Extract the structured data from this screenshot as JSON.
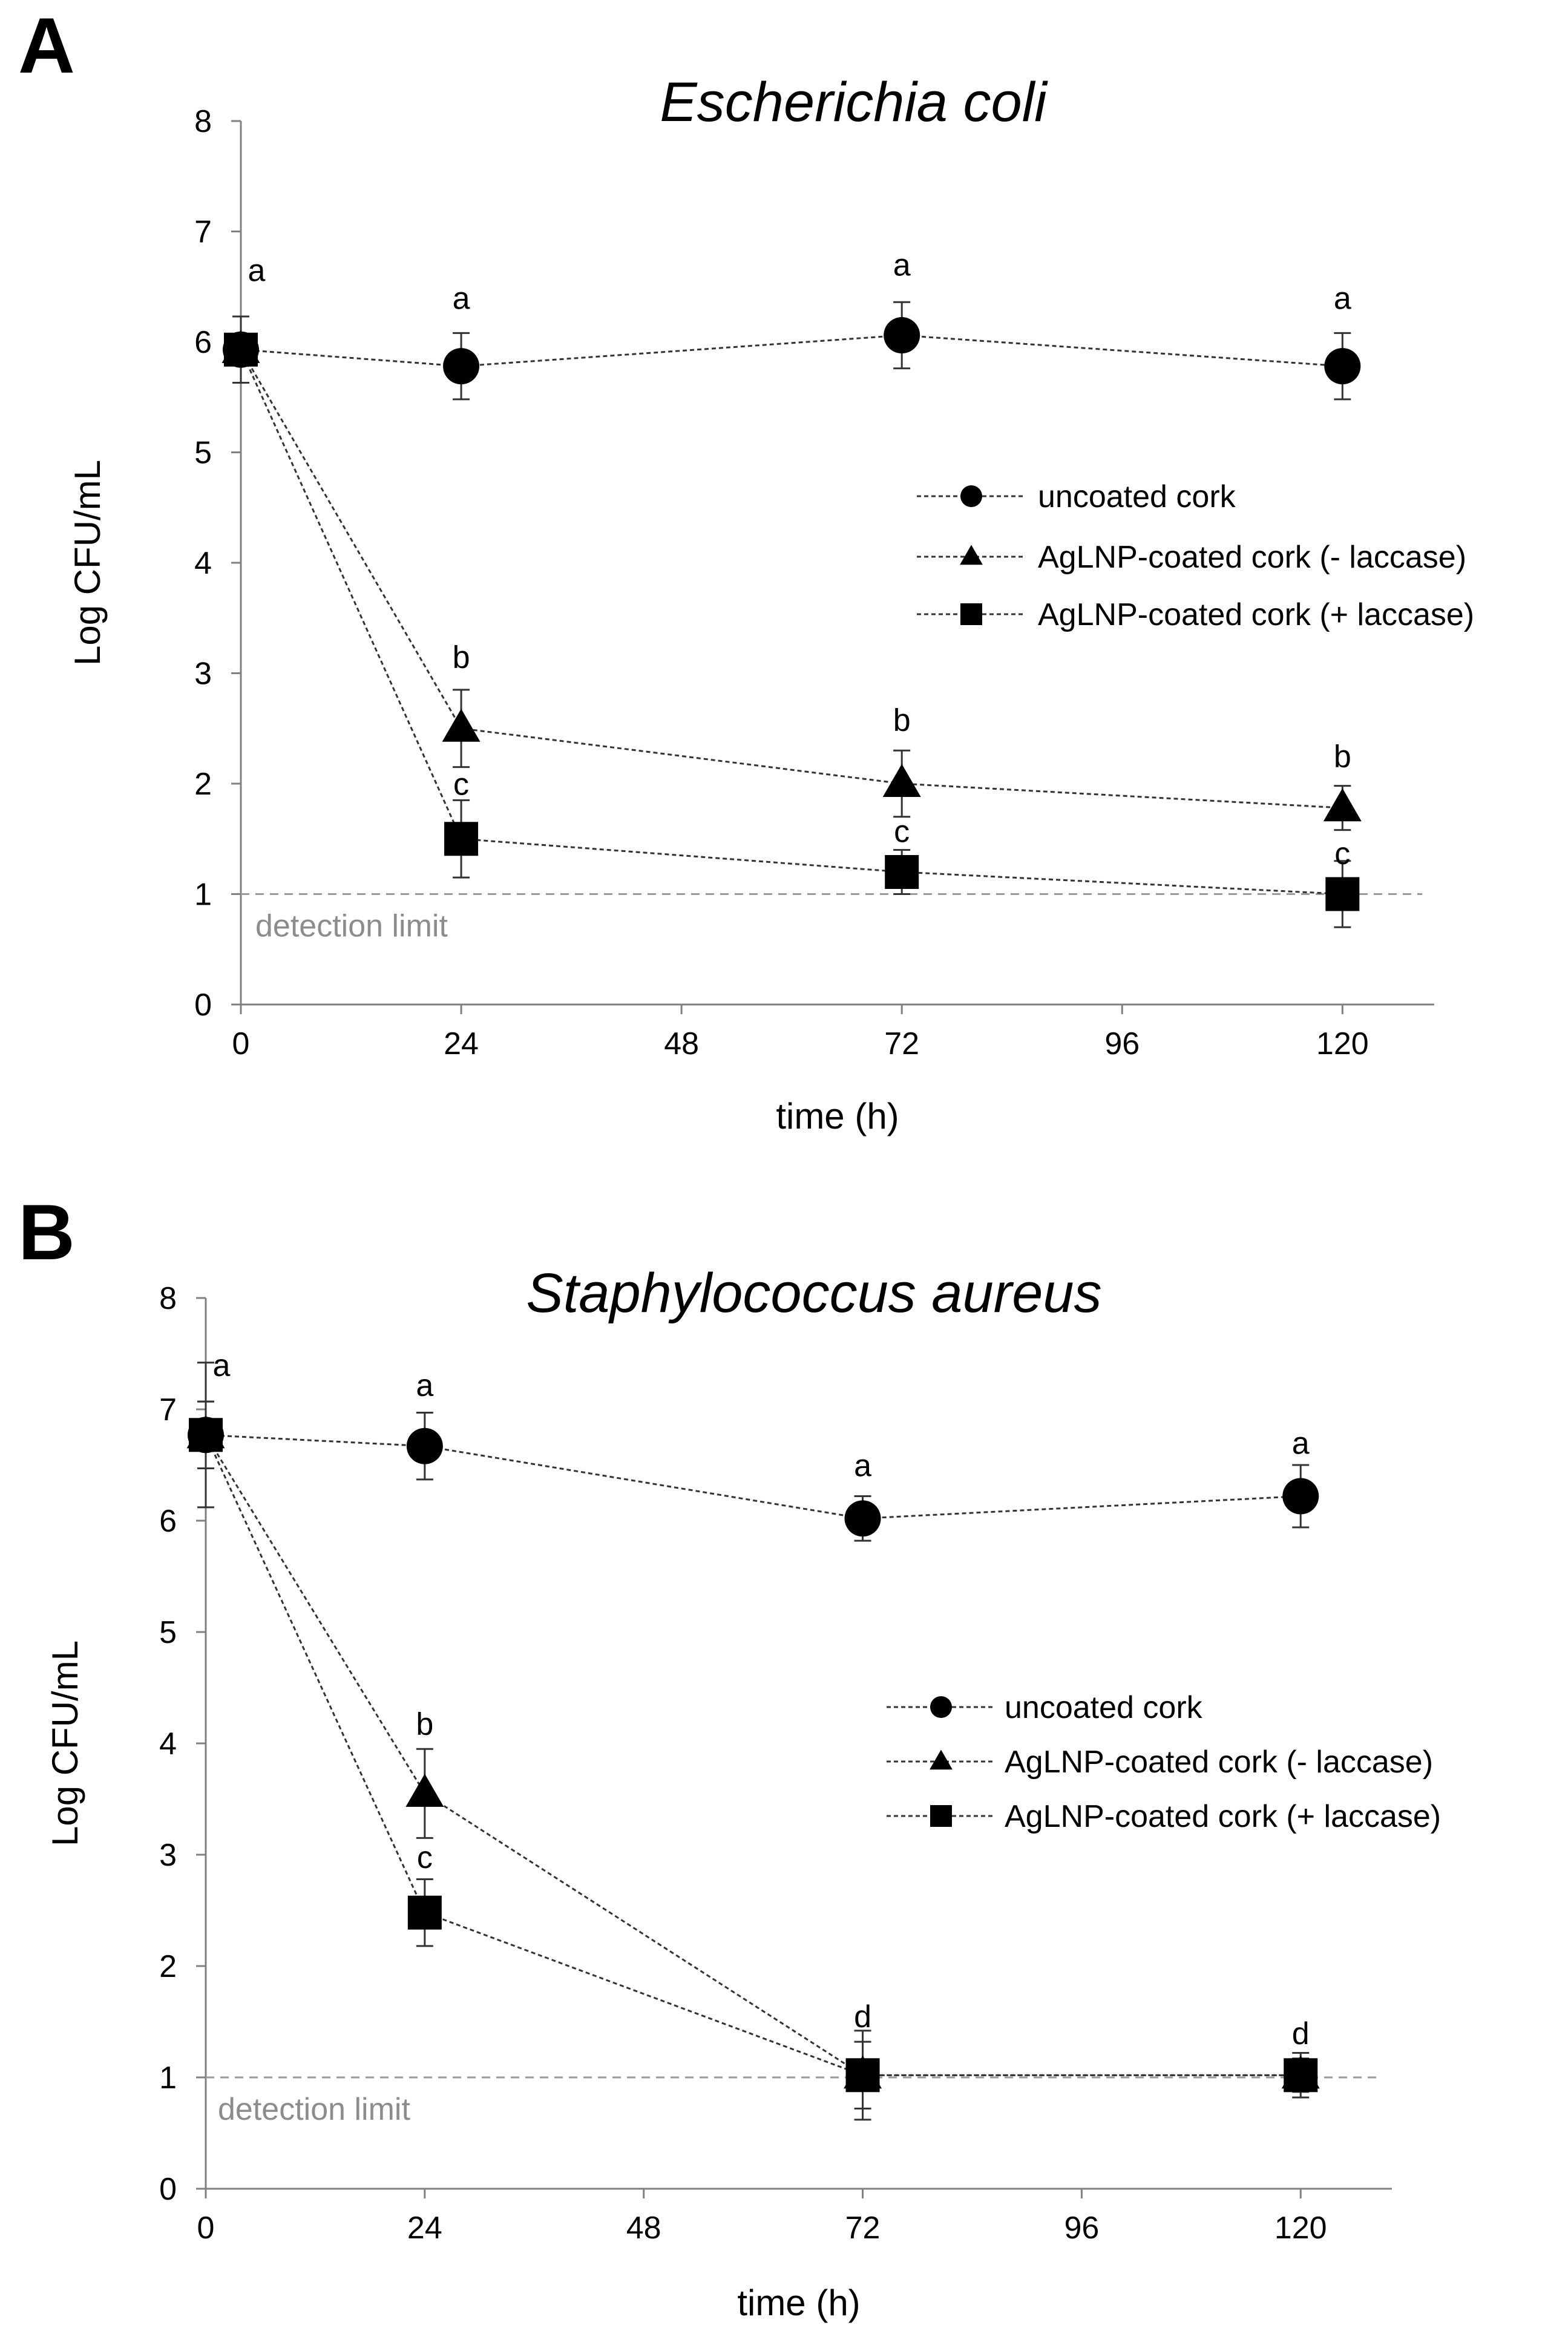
{
  "chart_data": [
    {
      "type": "line",
      "panel_label": "A",
      "title": "Escherichia coli",
      "xlabel": "time (h)",
      "ylabel": "Log CFU/mL",
      "xlim": [
        0,
        130
      ],
      "ylim": [
        0,
        8
      ],
      "x_ticks": [
        0,
        24,
        48,
        72,
        96,
        120
      ],
      "y_ticks": [
        0,
        1,
        2,
        3,
        4,
        5,
        6,
        7,
        8
      ],
      "x_tick_labels": [
        "0",
        "24",
        "48",
        "72",
        "96",
        "120"
      ],
      "y_tick_labels": [
        "0",
        "1",
        "2",
        "3",
        "4",
        "5",
        "6",
        "7",
        "8"
      ],
      "grid": false,
      "legend_position": "center-right",
      "detection_limit": {
        "value": 1.0,
        "label": "detection limit"
      },
      "series": [
        {
          "name": "uncoated cork",
          "marker": "circle",
          "x": [
            0,
            24,
            72,
            120
          ],
          "y": [
            5.93,
            5.78,
            6.06,
            5.78
          ],
          "err": [
            0.3,
            0.3,
            0.3,
            0.3
          ]
        },
        {
          "name": "AgLNP-coated cork (- laccase)",
          "marker": "triangle",
          "x": [
            0,
            24,
            72,
            120
          ],
          "y": [
            5.93,
            2.5,
            2.0,
            1.78
          ],
          "err": [
            0.3,
            0.35,
            0.3,
            0.2
          ]
        },
        {
          "name": "AgLNP-coated cork (+ laccase)",
          "marker": "square",
          "x": [
            0,
            24,
            72,
            120
          ],
          "y": [
            5.93,
            1.5,
            1.2,
            1.0
          ],
          "err": [
            0.3,
            0.35,
            0.2,
            0.3
          ]
        }
      ],
      "annotations": [
        {
          "text": "a",
          "x": 0,
          "y": 6.55
        },
        {
          "text": "a",
          "x": 24,
          "y": 6.3
        },
        {
          "text": "a",
          "x": 72,
          "y": 6.6
        },
        {
          "text": "a",
          "x": 120,
          "y": 6.3
        },
        {
          "text": "b",
          "x": 24,
          "y": 3.05
        },
        {
          "text": "b",
          "x": 72,
          "y": 2.48
        },
        {
          "text": "b",
          "x": 120,
          "y": 2.15
        },
        {
          "text": "c",
          "x": 24,
          "y": 1.9
        },
        {
          "text": "c",
          "x": 72,
          "y": 1.47
        },
        {
          "text": "c",
          "x": 120,
          "y": 1.27
        }
      ]
    },
    {
      "type": "line",
      "panel_label": "B",
      "title": "Staphylococcus aureus",
      "xlabel": "time (h)",
      "ylabel": "Log CFU/mL",
      "xlim": [
        0,
        130
      ],
      "ylim": [
        0,
        8
      ],
      "x_ticks": [
        0,
        24,
        48,
        72,
        96,
        120
      ],
      "y_ticks": [
        0,
        1,
        2,
        3,
        4,
        5,
        6,
        7,
        8
      ],
      "x_tick_labels": [
        "0",
        "24",
        "48",
        "72",
        "96",
        "120"
      ],
      "y_tick_labels": [
        "0",
        "1",
        "2",
        "3",
        "4",
        "5",
        "6",
        "7",
        "8"
      ],
      "grid": false,
      "legend_position": "center-right",
      "detection_limit": {
        "value": 1.0,
        "label": "detection limit"
      },
      "series": [
        {
          "name": "uncoated cork",
          "marker": "circle",
          "x": [
            0,
            24,
            72,
            120
          ],
          "y": [
            6.77,
            6.67,
            6.02,
            6.22
          ],
          "err": [
            0.65,
            0.3,
            0.2,
            0.28
          ]
        },
        {
          "name": "AgLNP-coated cork (- laccase)",
          "marker": "triangle",
          "x": [
            0,
            24,
            72,
            120
          ],
          "y": [
            6.77,
            3.55,
            1.02,
            1.02
          ],
          "err": [
            0.3,
            0.4,
            0.3,
            0.15
          ]
        },
        {
          "name": "AgLNP-coated cork (+ laccase)",
          "marker": "square",
          "x": [
            0,
            24,
            72,
            120
          ],
          "y": [
            6.77,
            2.48,
            1.02,
            1.02
          ],
          "err": [
            0.3,
            0.3,
            0.4,
            0.2
          ]
        }
      ],
      "annotations": [
        {
          "text": "a",
          "x": 0,
          "y": 7.3
        },
        {
          "text": "a",
          "x": 24,
          "y": 7.12
        },
        {
          "text": "a",
          "x": 72,
          "y": 6.4
        },
        {
          "text": "a",
          "x": 120,
          "y": 6.6
        },
        {
          "text": "b",
          "x": 24,
          "y": 4.08
        },
        {
          "text": "c",
          "x": 24,
          "y": 2.88
        },
        {
          "text": "d",
          "x": 72,
          "y": 1.45
        },
        {
          "text": "d",
          "x": 120,
          "y": 1.3
        }
      ]
    }
  ]
}
